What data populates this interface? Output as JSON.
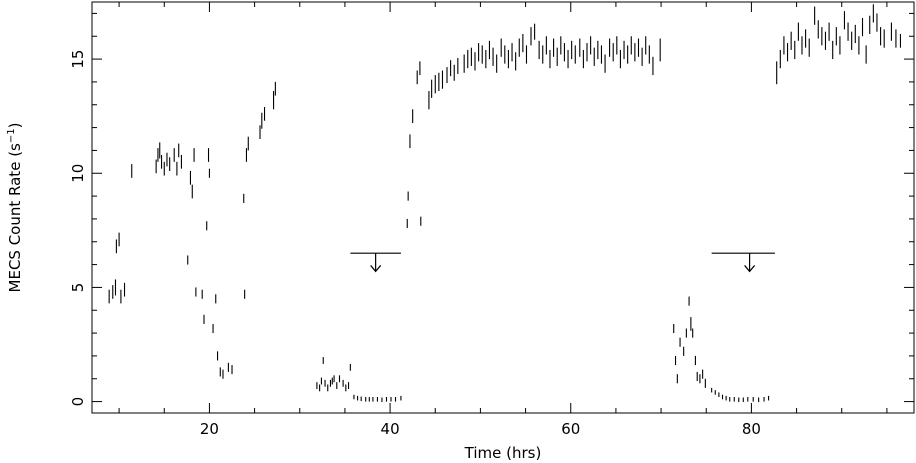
{
  "chart_data": {
    "type": "scatter",
    "xlabel": "Time (hrs)",
    "ylabel_main": "MECS Count Rate (s",
    "ylabel_sup": "−1",
    "ylabel_close": ")",
    "xlim": [
      7,
      98
    ],
    "ylim": [
      -0.5,
      17.5
    ],
    "xticks": [
      20,
      40,
      60,
      80
    ],
    "xtick_labels": [
      "20",
      "40",
      "60",
      "80"
    ],
    "yticks": [
      0,
      5,
      10,
      15
    ],
    "ytick_labels": [
      "0",
      "5",
      "10",
      "15"
    ],
    "grid": false,
    "legend": "none",
    "marker_color": "#000000",
    "series": [
      {
        "points": [
          [
            8.9,
            4.6,
            0.3
          ],
          [
            9.3,
            4.8,
            0.3
          ],
          [
            9.6,
            5.0,
            0.35
          ],
          [
            9.7,
            6.8,
            0.3
          ],
          [
            10.0,
            7.1,
            0.3
          ],
          [
            10.2,
            4.6,
            0.3
          ],
          [
            10.6,
            4.9,
            0.3
          ],
          [
            11.4,
            10.1,
            0.3
          ],
          [
            14.1,
            10.3,
            0.3
          ],
          [
            14.3,
            10.8,
            0.3
          ],
          [
            14.5,
            11.0,
            0.35
          ],
          [
            14.7,
            10.5,
            0.3
          ],
          [
            15.0,
            10.2,
            0.3
          ],
          [
            15.3,
            10.6,
            0.3
          ],
          [
            15.6,
            10.4,
            0.3
          ],
          [
            16.1,
            10.8,
            0.3
          ],
          [
            16.4,
            10.2,
            0.3
          ],
          [
            16.6,
            11.0,
            0.3
          ],
          [
            16.9,
            10.5,
            0.3
          ],
          [
            17.6,
            6.2,
            0.2
          ],
          [
            17.9,
            9.8,
            0.3
          ],
          [
            18.1,
            9.2,
            0.3
          ],
          [
            18.3,
            10.8,
            0.3
          ],
          [
            18.5,
            4.8,
            0.2
          ],
          [
            19.2,
            4.7,
            0.2
          ],
          [
            19.4,
            3.6,
            0.2
          ],
          [
            19.7,
            7.7,
            0.2
          ],
          [
            19.9,
            10.8,
            0.3
          ],
          [
            20.0,
            10.0,
            0.2
          ],
          [
            20.4,
            3.2,
            0.2
          ],
          [
            20.7,
            4.5,
            0.2
          ],
          [
            20.9,
            2.0,
            0.2
          ],
          [
            21.2,
            1.3,
            0.2
          ],
          [
            21.5,
            1.2,
            0.2
          ],
          [
            22.1,
            1.5,
            0.2
          ],
          [
            22.5,
            1.4,
            0.2
          ],
          [
            23.8,
            8.9,
            0.2
          ],
          [
            23.9,
            4.7,
            0.2
          ],
          [
            24.1,
            10.8,
            0.3
          ],
          [
            24.3,
            11.3,
            0.3
          ],
          [
            25.6,
            11.8,
            0.3
          ],
          [
            25.8,
            12.3,
            0.35
          ],
          [
            26.1,
            12.6,
            0.3
          ],
          [
            27.1,
            13.2,
            0.4
          ],
          [
            27.3,
            13.7,
            0.3
          ],
          [
            31.9,
            0.7,
            0.15
          ],
          [
            32.2,
            0.6,
            0.15
          ],
          [
            32.4,
            0.9,
            0.15
          ],
          [
            32.6,
            1.8,
            0.15
          ],
          [
            32.8,
            0.8,
            0.15
          ],
          [
            33.1,
            0.6,
            0.15
          ],
          [
            33.4,
            0.8,
            0.15
          ],
          [
            33.6,
            0.9,
            0.15
          ],
          [
            33.8,
            1.0,
            0.15
          ],
          [
            34.1,
            0.7,
            0.15
          ],
          [
            34.4,
            1.0,
            0.15
          ],
          [
            34.8,
            0.8,
            0.15
          ],
          [
            35.1,
            0.6,
            0.15
          ],
          [
            35.4,
            0.7,
            0.15
          ],
          [
            35.6,
            1.5,
            0.15
          ],
          [
            36.0,
            0.2,
            0.1
          ],
          [
            36.4,
            0.15,
            0.1
          ],
          [
            36.8,
            0.12,
            0.1
          ],
          [
            37.3,
            0.1,
            0.1
          ],
          [
            37.7,
            0.1,
            0.1
          ],
          [
            38.1,
            0.1,
            0.1
          ],
          [
            38.6,
            0.1,
            0.1
          ],
          [
            39.1,
            0.08,
            0.1
          ],
          [
            39.6,
            0.1,
            0.1
          ],
          [
            40.1,
            0.1,
            0.1
          ],
          [
            40.6,
            0.1,
            0.1
          ],
          [
            41.2,
            0.15,
            0.1
          ],
          [
            41.9,
            7.8,
            0.2
          ],
          [
            42.0,
            9.0,
            0.2
          ],
          [
            42.2,
            11.4,
            0.3
          ],
          [
            42.5,
            12.5,
            0.3
          ],
          [
            43.0,
            14.2,
            0.3
          ],
          [
            43.3,
            14.6,
            0.3
          ],
          [
            43.4,
            7.9,
            0.2
          ],
          [
            44.3,
            13.2,
            0.4
          ],
          [
            44.6,
            13.7,
            0.4
          ],
          [
            45.0,
            13.9,
            0.4
          ],
          [
            45.4,
            14.0,
            0.4
          ],
          [
            45.8,
            14.1,
            0.4
          ],
          [
            46.3,
            14.3,
            0.35
          ],
          [
            46.7,
            14.6,
            0.35
          ],
          [
            47.1,
            14.4,
            0.35
          ],
          [
            47.5,
            14.7,
            0.35
          ],
          [
            48.2,
            14.8,
            0.4
          ],
          [
            48.6,
            15.0,
            0.4
          ],
          [
            49.0,
            15.1,
            0.4
          ],
          [
            49.4,
            14.9,
            0.4
          ],
          [
            49.8,
            15.3,
            0.4
          ],
          [
            50.2,
            15.2,
            0.4
          ],
          [
            50.6,
            15.0,
            0.4
          ],
          [
            51.0,
            15.4,
            0.4
          ],
          [
            51.4,
            15.1,
            0.4
          ],
          [
            51.8,
            14.8,
            0.4
          ],
          [
            52.3,
            15.5,
            0.4
          ],
          [
            52.7,
            15.2,
            0.4
          ],
          [
            53.1,
            15.0,
            0.4
          ],
          [
            53.5,
            15.3,
            0.4
          ],
          [
            53.9,
            14.9,
            0.4
          ],
          [
            54.3,
            15.5,
            0.4
          ],
          [
            54.7,
            15.7,
            0.4
          ],
          [
            55.1,
            15.2,
            0.4
          ],
          [
            55.6,
            16.0,
            0.4
          ],
          [
            56.0,
            16.2,
            0.35
          ],
          [
            56.5,
            15.4,
            0.4
          ],
          [
            56.9,
            15.2,
            0.4
          ],
          [
            57.3,
            15.6,
            0.4
          ],
          [
            57.7,
            15.0,
            0.4
          ],
          [
            58.1,
            15.5,
            0.4
          ],
          [
            58.5,
            15.1,
            0.4
          ],
          [
            58.9,
            15.6,
            0.4
          ],
          [
            59.3,
            15.3,
            0.4
          ],
          [
            59.7,
            15.0,
            0.4
          ],
          [
            60.1,
            15.4,
            0.4
          ],
          [
            60.5,
            15.2,
            0.4
          ],
          [
            61.0,
            15.5,
            0.4
          ],
          [
            61.4,
            15.0,
            0.4
          ],
          [
            61.8,
            15.3,
            0.4
          ],
          [
            62.2,
            15.6,
            0.4
          ],
          [
            62.6,
            15.1,
            0.4
          ],
          [
            63.0,
            15.4,
            0.4
          ],
          [
            63.4,
            15.2,
            0.4
          ],
          [
            63.8,
            14.8,
            0.4
          ],
          [
            64.3,
            15.5,
            0.4
          ],
          [
            64.7,
            15.3,
            0.4
          ],
          [
            65.1,
            15.6,
            0.4
          ],
          [
            65.5,
            15.0,
            0.4
          ],
          [
            65.9,
            15.4,
            0.4
          ],
          [
            66.3,
            15.2,
            0.4
          ],
          [
            66.7,
            15.6,
            0.4
          ],
          [
            67.1,
            15.3,
            0.4
          ],
          [
            67.5,
            15.5,
            0.4
          ],
          [
            67.9,
            15.1,
            0.4
          ],
          [
            68.3,
            15.6,
            0.4
          ],
          [
            68.7,
            15.2,
            0.4
          ],
          [
            69.1,
            14.7,
            0.4
          ],
          [
            69.9,
            15.4,
            0.5
          ],
          [
            71.4,
            3.2,
            0.2
          ],
          [
            71.6,
            1.8,
            0.2
          ],
          [
            71.8,
            1.0,
            0.2
          ],
          [
            72.1,
            2.6,
            0.2
          ],
          [
            72.5,
            2.2,
            0.2
          ],
          [
            72.8,
            3.0,
            0.2
          ],
          [
            73.1,
            4.4,
            0.2
          ],
          [
            73.3,
            3.4,
            0.3
          ],
          [
            73.5,
            3.0,
            0.2
          ],
          [
            73.8,
            1.8,
            0.2
          ],
          [
            74.0,
            1.1,
            0.2
          ],
          [
            74.3,
            1.0,
            0.2
          ],
          [
            74.6,
            1.2,
            0.2
          ],
          [
            74.9,
            0.8,
            0.2
          ],
          [
            75.6,
            0.5,
            0.1
          ],
          [
            76.0,
            0.4,
            0.1
          ],
          [
            76.4,
            0.3,
            0.1
          ],
          [
            76.8,
            0.2,
            0.1
          ],
          [
            77.2,
            0.15,
            0.1
          ],
          [
            77.6,
            0.1,
            0.1
          ],
          [
            78.1,
            0.1,
            0.1
          ],
          [
            78.6,
            0.08,
            0.1
          ],
          [
            79.1,
            0.08,
            0.1
          ],
          [
            79.6,
            0.1,
            0.1
          ],
          [
            80.2,
            0.1,
            0.1
          ],
          [
            80.8,
            0.08,
            0.1
          ],
          [
            81.4,
            0.1,
            0.1
          ],
          [
            81.9,
            0.15,
            0.1
          ],
          [
            82.8,
            14.4,
            0.5
          ],
          [
            83.2,
            15.0,
            0.4
          ],
          [
            83.6,
            15.6,
            0.4
          ],
          [
            84.0,
            15.3,
            0.4
          ],
          [
            84.4,
            15.8,
            0.4
          ],
          [
            84.8,
            15.4,
            0.4
          ],
          [
            85.2,
            16.2,
            0.4
          ],
          [
            85.6,
            15.6,
            0.4
          ],
          [
            86.0,
            15.9,
            0.4
          ],
          [
            86.4,
            15.5,
            0.4
          ],
          [
            87.0,
            16.9,
            0.4
          ],
          [
            87.4,
            16.3,
            0.4
          ],
          [
            87.8,
            16.0,
            0.4
          ],
          [
            88.2,
            15.8,
            0.4
          ],
          [
            88.6,
            16.2,
            0.4
          ],
          [
            89.0,
            15.4,
            0.4
          ],
          [
            89.4,
            16.0,
            0.4
          ],
          [
            89.8,
            15.6,
            0.4
          ],
          [
            90.3,
            16.7,
            0.4
          ],
          [
            90.7,
            16.2,
            0.4
          ],
          [
            91.1,
            15.8,
            0.4
          ],
          [
            91.5,
            16.1,
            0.4
          ],
          [
            91.9,
            15.6,
            0.4
          ],
          [
            92.3,
            16.4,
            0.4
          ],
          [
            92.7,
            15.2,
            0.4
          ],
          [
            93.1,
            16.5,
            0.4
          ],
          [
            93.5,
            17.0,
            0.4
          ],
          [
            93.9,
            16.6,
            0.4
          ],
          [
            94.3,
            16.0,
            0.4
          ],
          [
            94.7,
            15.9,
            0.4
          ],
          [
            95.5,
            16.2,
            0.4
          ],
          [
            96.0,
            15.9,
            0.4
          ],
          [
            96.5,
            15.8,
            0.3
          ]
        ]
      }
    ],
    "upper_limits": [
      {
        "x_start": 35.6,
        "x_end": 41.2,
        "x_center": 38.4,
        "y": 6.5,
        "y_arrow": 5.7
      },
      {
        "x_start": 75.6,
        "x_end": 82.6,
        "x_center": 79.8,
        "y": 6.5,
        "y_arrow": 5.7
      }
    ]
  }
}
